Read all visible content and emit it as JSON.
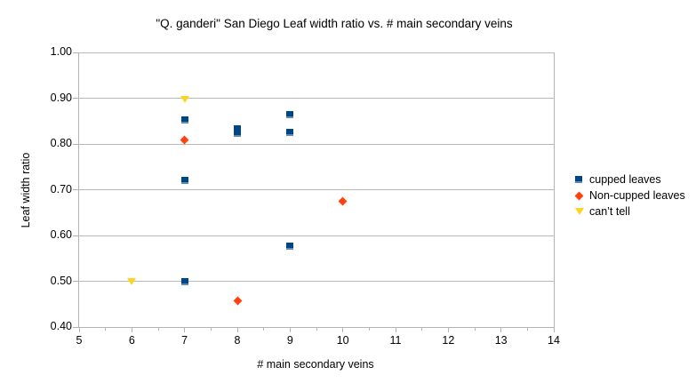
{
  "chart_data": {
    "type": "scatter",
    "title": "\"Q. ganderi\" San Diego Leaf width ratio vs. # main secondary veins",
    "xlabel": "# main secondary veins",
    "ylabel": "Leaf width ratio",
    "xlim": [
      5,
      14
    ],
    "ylim": [
      0.4,
      1.0
    ],
    "x_ticks": [
      5,
      6,
      7,
      8,
      9,
      10,
      11,
      12,
      13,
      14
    ],
    "y_ticks": [
      0.4,
      0.5,
      0.6,
      0.7,
      0.8,
      0.9,
      1.0
    ],
    "grid": "horizontal-major",
    "legend_position": "right",
    "series": [
      {
        "name": "cupped leaves",
        "marker": "square",
        "color": "#004586",
        "points": [
          [
            7,
            0.853
          ],
          [
            7,
            0.72
          ],
          [
            7,
            0.5
          ],
          [
            8,
            0.833
          ],
          [
            8,
            0.824
          ],
          [
            9,
            0.864
          ],
          [
            9,
            0.825
          ],
          [
            9,
            0.577
          ]
        ]
      },
      {
        "name": "Non-cupped leaves",
        "marker": "diamond",
        "color": "#FF420E",
        "points": [
          [
            7,
            0.808
          ],
          [
            8,
            0.458
          ],
          [
            10,
            0.675
          ]
        ]
      },
      {
        "name": "can’t tell",
        "marker": "triangle-down",
        "color": "#FFD320",
        "points": [
          [
            6,
            0.5
          ],
          [
            7,
            0.897
          ]
        ]
      }
    ],
    "colors": {
      "axis": "#b3b3b3",
      "gridline": "#b9b9b9",
      "text": "#000000",
      "background": "#ffffff"
    }
  }
}
